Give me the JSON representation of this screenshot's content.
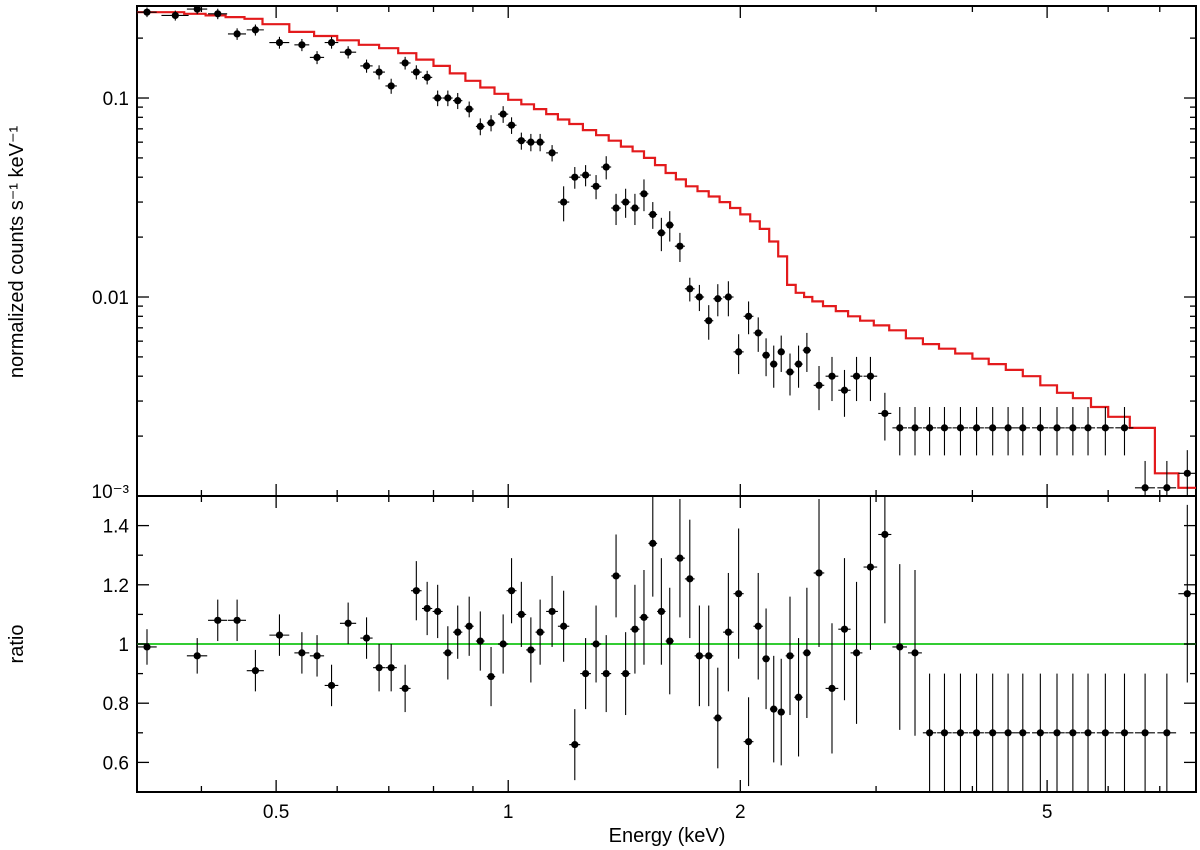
{
  "chart_data": [
    {
      "type": "scatter",
      "panel": "spectrum",
      "xlabel": "Energy (keV)",
      "ylabel": "normalized counts s⁻¹ keV⁻¹",
      "x_scale": "log",
      "y_scale": "log",
      "xlim": [
        0.33,
        7.8
      ],
      "ylim": [
        0.001,
        0.29
      ],
      "y_ticks": [
        {
          "value": 0.1,
          "label": "0.1"
        },
        {
          "value": 0.01,
          "label": "0.01"
        },
        {
          "value": 0.001,
          "label": "10⁻³"
        }
      ],
      "grid": false,
      "legend": "none",
      "colors": {
        "data": "#000000",
        "model": "#e31a1c"
      },
      "data": {
        "x": [
          0.34,
          0.37,
          0.395,
          0.42,
          0.445,
          0.47,
          0.505,
          0.54,
          0.565,
          0.59,
          0.62,
          0.655,
          0.68,
          0.705,
          0.735,
          0.76,
          0.785,
          0.81,
          0.835,
          0.86,
          0.89,
          0.92,
          0.95,
          0.985,
          1.01,
          1.04,
          1.07,
          1.1,
          1.14,
          1.18,
          1.22,
          1.26,
          1.3,
          1.34,
          1.38,
          1.42,
          1.46,
          1.5,
          1.54,
          1.58,
          1.62,
          1.67,
          1.72,
          1.77,
          1.82,
          1.87,
          1.93,
          1.99,
          2.05,
          2.11,
          2.16,
          2.21,
          2.26,
          2.32,
          2.38,
          2.44,
          2.53,
          2.63,
          2.73,
          2.83,
          2.95,
          3.08,
          3.22,
          3.37,
          3.52,
          3.68,
          3.86,
          4.05,
          4.25,
          4.45,
          4.65,
          4.9,
          5.15,
          5.4,
          5.65,
          5.95,
          6.3,
          6.7,
          7.15,
          7.6
        ],
        "y": [
          0.27,
          0.26,
          0.28,
          0.265,
          0.21,
          0.22,
          0.19,
          0.185,
          0.16,
          0.19,
          0.17,
          0.145,
          0.135,
          0.115,
          0.15,
          0.135,
          0.127,
          0.1,
          0.1,
          0.097,
          0.088,
          0.072,
          0.075,
          0.083,
          0.073,
          0.061,
          0.06,
          0.06,
          0.053,
          0.03,
          0.04,
          0.041,
          0.036,
          0.045,
          0.028,
          0.03,
          0.028,
          0.033,
          0.026,
          0.021,
          0.023,
          0.018,
          0.011,
          0.01,
          0.0076,
          0.0098,
          0.01,
          0.0053,
          0.008,
          0.0066,
          0.0051,
          0.0046,
          0.0053,
          0.0042,
          0.0046,
          0.0054,
          0.0036,
          0.004,
          0.0034,
          0.004,
          0.004,
          0.0026,
          0.0022,
          0.0022,
          0.0022,
          0.0022,
          0.0022,
          0.0022,
          0.0022,
          0.0022,
          0.0022,
          0.0022,
          0.0022,
          0.0022,
          0.0022,
          0.0022,
          0.0022,
          0.0011,
          0.0011,
          0.0013
        ],
        "x_err": [
          0.01,
          0.015,
          0.012,
          0.012,
          0.012,
          0.012,
          0.015,
          0.012,
          0.012,
          0.012,
          0.015,
          0.012,
          0.012,
          0.012,
          0.012,
          0.012,
          0.012,
          0.012,
          0.012,
          0.012,
          0.012,
          0.012,
          0.012,
          0.015,
          0.015,
          0.015,
          0.015,
          0.015,
          0.02,
          0.02,
          0.02,
          0.02,
          0.02,
          0.02,
          0.02,
          0.02,
          0.02,
          0.02,
          0.02,
          0.02,
          0.02,
          0.025,
          0.025,
          0.025,
          0.025,
          0.025,
          0.03,
          0.03,
          0.03,
          0.03,
          0.025,
          0.025,
          0.025,
          0.03,
          0.03,
          0.03,
          0.04,
          0.05,
          0.05,
          0.05,
          0.06,
          0.06,
          0.07,
          0.07,
          0.07,
          0.08,
          0.09,
          0.09,
          0.1,
          0.1,
          0.1,
          0.12,
          0.12,
          0.12,
          0.12,
          0.15,
          0.17,
          0.2,
          0.2,
          0.2
        ],
        "y_err": [
          0.015,
          0.015,
          0.016,
          0.016,
          0.014,
          0.014,
          0.013,
          0.013,
          0.012,
          0.013,
          0.012,
          0.011,
          0.011,
          0.01,
          0.011,
          0.011,
          0.01,
          0.009,
          0.009,
          0.009,
          0.008,
          0.007,
          0.007,
          0.008,
          0.007,
          0.006,
          0.006,
          0.006,
          0.005,
          0.006,
          0.005,
          0.005,
          0.005,
          0.006,
          0.005,
          0.005,
          0.005,
          0.006,
          0.004,
          0.004,
          0.004,
          0.003,
          0.0015,
          0.0015,
          0.0015,
          0.0018,
          0.002,
          0.0012,
          0.0015,
          0.0013,
          0.0011,
          0.0011,
          0.0011,
          0.001,
          0.0011,
          0.0012,
          0.0009,
          0.001,
          0.0009,
          0.001,
          0.001,
          0.0007,
          0.0006,
          0.0006,
          0.0006,
          0.0006,
          0.0006,
          0.0006,
          0.0006,
          0.0006,
          0.0006,
          0.0006,
          0.0006,
          0.0006,
          0.0006,
          0.0006,
          0.0006,
          0.0004,
          0.0004,
          0.0004
        ]
      },
      "model_step": {
        "edges": [
          0.33,
          0.355,
          0.38,
          0.405,
          0.43,
          0.455,
          0.48,
          0.52,
          0.56,
          0.6,
          0.64,
          0.68,
          0.72,
          0.76,
          0.8,
          0.84,
          0.88,
          0.92,
          0.96,
          1.0,
          1.04,
          1.08,
          1.12,
          1.16,
          1.2,
          1.25,
          1.3,
          1.35,
          1.4,
          1.45,
          1.5,
          1.55,
          1.6,
          1.65,
          1.7,
          1.76,
          1.82,
          1.88,
          1.94,
          2.0,
          2.06,
          2.12,
          2.18,
          2.24,
          2.3,
          2.36,
          2.42,
          2.48,
          2.56,
          2.66,
          2.76,
          2.86,
          2.98,
          3.12,
          3.28,
          3.45,
          3.62,
          3.8,
          4.0,
          4.2,
          4.42,
          4.65,
          4.9,
          5.15,
          5.4,
          5.7,
          6.0,
          6.4,
          6.9,
          7.4,
          7.8
        ],
        "values": [
          0.27,
          0.27,
          0.265,
          0.26,
          0.255,
          0.25,
          0.235,
          0.215,
          0.205,
          0.195,
          0.185,
          0.178,
          0.168,
          0.156,
          0.145,
          0.133,
          0.122,
          0.113,
          0.105,
          0.098,
          0.093,
          0.088,
          0.083,
          0.078,
          0.074,
          0.069,
          0.065,
          0.061,
          0.057,
          0.054,
          0.05,
          0.046,
          0.042,
          0.039,
          0.036,
          0.034,
          0.032,
          0.03,
          0.028,
          0.026,
          0.024,
          0.022,
          0.019,
          0.016,
          0.0115,
          0.0105,
          0.01,
          0.0095,
          0.009,
          0.0085,
          0.008,
          0.0076,
          0.0072,
          0.0068,
          0.0062,
          0.0058,
          0.0055,
          0.0052,
          0.0049,
          0.0046,
          0.0043,
          0.004,
          0.0036,
          0.0033,
          0.0031,
          0.0028,
          0.0025,
          0.0022,
          0.0013,
          0.0011
        ]
      }
    },
    {
      "type": "scatter",
      "panel": "ratio",
      "xlabel": "Energy (keV)",
      "ylabel": "ratio",
      "x_scale": "log",
      "y_scale": "linear",
      "xlim": [
        0.33,
        7.8
      ],
      "ylim": [
        0.5,
        1.5
      ],
      "x_ticks": [
        {
          "value": 0.5,
          "label": "0.5"
        },
        {
          "value": 1,
          "label": "1"
        },
        {
          "value": 2,
          "label": "2"
        },
        {
          "value": 5,
          "label": "5"
        }
      ],
      "y_ticks": [
        {
          "value": 0.6,
          "label": "0.6"
        },
        {
          "value": 0.8,
          "label": "0.8"
        },
        {
          "value": 1.0,
          "label": "1"
        },
        {
          "value": 1.2,
          "label": "1.2"
        },
        {
          "value": 1.4,
          "label": "1.4"
        }
      ],
      "reference_line": 1.0,
      "grid": false,
      "legend": "none",
      "colors": {
        "data": "#000000",
        "reference": "#33cc33"
      },
      "data": {
        "x": [
          0.34,
          0.395,
          0.42,
          0.445,
          0.47,
          0.505,
          0.54,
          0.565,
          0.59,
          0.62,
          0.655,
          0.68,
          0.705,
          0.735,
          0.76,
          0.785,
          0.81,
          0.835,
          0.86,
          0.89,
          0.92,
          0.95,
          0.985,
          1.01,
          1.04,
          1.07,
          1.1,
          1.14,
          1.18,
          1.22,
          1.26,
          1.3,
          1.34,
          1.38,
          1.42,
          1.46,
          1.5,
          1.54,
          1.58,
          1.62,
          1.67,
          1.72,
          1.77,
          1.82,
          1.87,
          1.93,
          1.99,
          2.05,
          2.11,
          2.16,
          2.21,
          2.26,
          2.32,
          2.38,
          2.44,
          2.53,
          2.63,
          2.73,
          2.83,
          2.95,
          3.08,
          3.22,
          3.37,
          3.52,
          3.68,
          3.86,
          4.05,
          4.25,
          4.45,
          4.65,
          4.9,
          5.15,
          5.4,
          5.65,
          5.95,
          6.3,
          6.7,
          7.15,
          7.6
        ],
        "y": [
          0.99,
          0.96,
          1.08,
          1.08,
          0.91,
          1.03,
          0.97,
          0.96,
          0.86,
          1.07,
          1.02,
          0.92,
          0.92,
          0.85,
          1.18,
          1.12,
          1.11,
          0.97,
          1.04,
          1.06,
          1.01,
          0.89,
          1.0,
          1.18,
          1.1,
          0.98,
          1.04,
          1.11,
          1.06,
          0.66,
          0.9,
          1.0,
          0.9,
          1.23,
          0.9,
          1.05,
          1.09,
          1.34,
          1.11,
          1.01,
          1.29,
          1.22,
          0.96,
          0.96,
          0.75,
          1.04,
          1.17,
          0.67,
          1.06,
          0.95,
          0.78,
          0.77,
          0.96,
          0.82,
          0.97,
          1.24,
          0.85,
          1.05,
          0.97,
          1.26,
          1.37,
          0.99,
          0.97,
          0.7,
          0.7,
          0.7,
          0.7,
          0.7,
          0.7,
          0.7,
          0.7,
          0.7,
          0.7,
          0.7,
          0.7,
          0.7,
          0.7,
          0.7,
          1.17
        ],
        "x_err": [
          0.01,
          0.012,
          0.012,
          0.012,
          0.012,
          0.015,
          0.012,
          0.012,
          0.012,
          0.015,
          0.012,
          0.012,
          0.012,
          0.012,
          0.012,
          0.012,
          0.012,
          0.012,
          0.012,
          0.012,
          0.012,
          0.012,
          0.015,
          0.015,
          0.015,
          0.015,
          0.015,
          0.02,
          0.02,
          0.02,
          0.02,
          0.02,
          0.02,
          0.02,
          0.02,
          0.02,
          0.02,
          0.02,
          0.02,
          0.02,
          0.025,
          0.025,
          0.025,
          0.025,
          0.025,
          0.03,
          0.03,
          0.03,
          0.03,
          0.025,
          0.025,
          0.025,
          0.03,
          0.03,
          0.03,
          0.04,
          0.05,
          0.05,
          0.05,
          0.06,
          0.06,
          0.07,
          0.07,
          0.07,
          0.08,
          0.09,
          0.09,
          0.1,
          0.1,
          0.1,
          0.12,
          0.12,
          0.12,
          0.12,
          0.15,
          0.17,
          0.2,
          0.2,
          0.2
        ],
        "y_err": [
          0.06,
          0.06,
          0.07,
          0.07,
          0.07,
          0.07,
          0.07,
          0.07,
          0.07,
          0.07,
          0.07,
          0.08,
          0.08,
          0.08,
          0.1,
          0.09,
          0.09,
          0.09,
          0.09,
          0.1,
          0.1,
          0.1,
          0.1,
          0.11,
          0.11,
          0.11,
          0.11,
          0.12,
          0.12,
          0.12,
          0.12,
          0.13,
          0.13,
          0.14,
          0.14,
          0.15,
          0.16,
          0.18,
          0.18,
          0.18,
          0.2,
          0.2,
          0.17,
          0.17,
          0.17,
          0.2,
          0.22,
          0.15,
          0.18,
          0.17,
          0.18,
          0.18,
          0.2,
          0.2,
          0.22,
          0.25,
          0.22,
          0.24,
          0.24,
          0.28,
          0.3,
          0.28,
          0.28,
          0.2,
          0.2,
          0.2,
          0.2,
          0.2,
          0.2,
          0.2,
          0.2,
          0.2,
          0.2,
          0.2,
          0.2,
          0.2,
          0.2,
          0.2,
          0.3
        ]
      }
    }
  ]
}
